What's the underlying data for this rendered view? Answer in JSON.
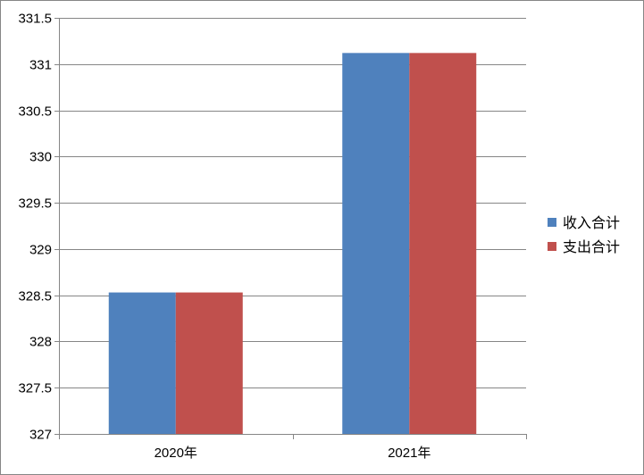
{
  "chart_data": {
    "type": "bar",
    "categories": [
      "2020年",
      "2021年"
    ],
    "series": [
      {
        "name": "收入合计",
        "color": "#4F81BD",
        "values": [
          328.53,
          331.12
        ]
      },
      {
        "name": "支出合计",
        "color": "#C0504D",
        "values": [
          328.53,
          331.12
        ]
      }
    ],
    "title": "",
    "xlabel": "",
    "ylabel": "",
    "ylim": [
      327,
      331.5
    ],
    "yticks": [
      "327",
      "327.5",
      "328",
      "328.5",
      "329",
      "329.5",
      "330",
      "330.5",
      "331",
      "331.5"
    ],
    "grid": true,
    "legend_position": "right"
  }
}
